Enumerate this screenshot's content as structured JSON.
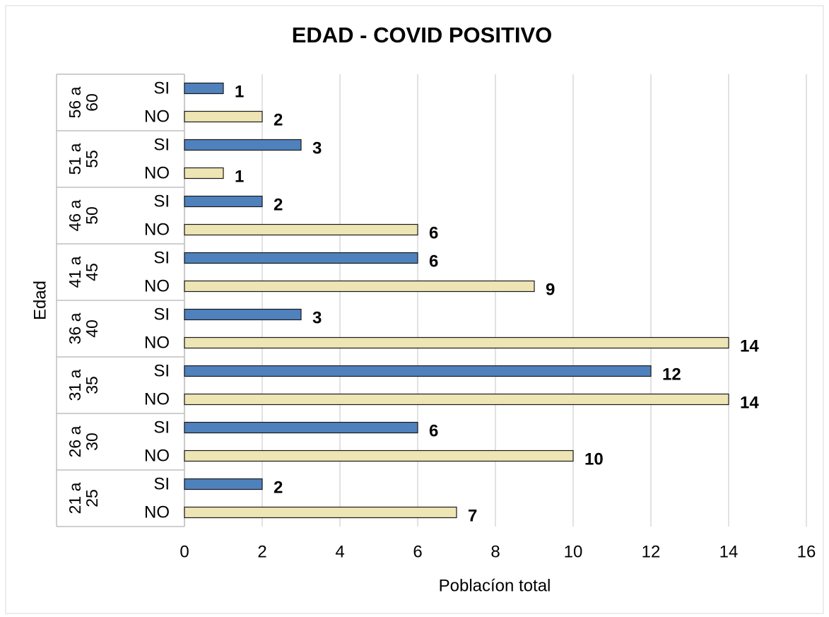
{
  "chart_data": {
    "type": "bar",
    "orientation": "horizontal",
    "title": "EDAD - COVID POSITIVO",
    "x_label": "Poblacíon total",
    "y_label": "Edad",
    "groups": [
      "56 a 60",
      "51 a 55",
      "46 a 50",
      "41 a 45",
      "36 a 40",
      "31 a 35",
      "26 a 30",
      "21 a 25"
    ],
    "series": [
      {
        "name": "SI",
        "color": "#4f81bd",
        "values": [
          1,
          3,
          2,
          6,
          3,
          12,
          6,
          2
        ]
      },
      {
        "name": "NO",
        "color": "#eee5b5",
        "values": [
          2,
          1,
          6,
          9,
          14,
          14,
          10,
          7
        ]
      }
    ],
    "xlim": [
      0,
      16
    ],
    "xticks": [
      0,
      2,
      4,
      6,
      8,
      10,
      12,
      14,
      16
    ],
    "grid": true
  }
}
